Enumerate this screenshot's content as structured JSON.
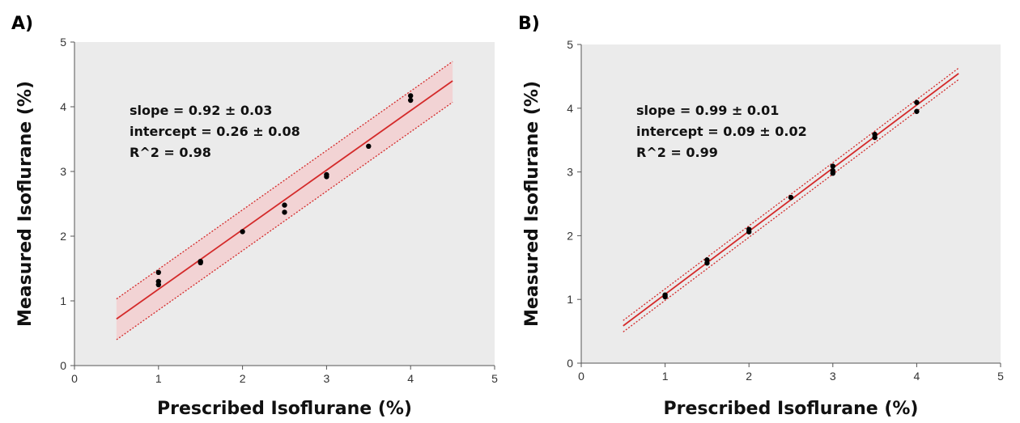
{
  "colors": {
    "plot_background": "#ebebeb",
    "fit_line": "#d42a2a",
    "confidence_band": "#f2d3d4",
    "points": "#000000"
  },
  "chart_data": [
    {
      "panel_label": "A)",
      "type": "scatter",
      "xlabel": "Prescribed Isoflurane (%)",
      "ylabel": "Measured Isoflurane (%)",
      "xlim": [
        0,
        5
      ],
      "ylim": [
        0,
        5
      ],
      "xticks": [
        "0",
        "1",
        "2",
        "3",
        "4",
        "5"
      ],
      "yticks": [
        "0",
        "1",
        "2",
        "3",
        "4",
        "5"
      ],
      "grid": false,
      "annotation": [
        "slope = 0.92 ± 0.03",
        "intercept = 0.26 ± 0.08",
        "R^2 = 0.98"
      ],
      "fit": {
        "slope": 0.92,
        "intercept": 0.26,
        "x_range": [
          0.5,
          4.5
        ]
      },
      "band": {
        "lower_at_start": 0.4,
        "upper_at_start": 1.03,
        "lower_at_end": 4.07,
        "upper_at_end": 4.7,
        "shaded": true
      },
      "points": [
        {
          "x": 1,
          "y": 1.44
        },
        {
          "x": 1,
          "y": 1.3
        },
        {
          "x": 1,
          "y": 1.25
        },
        {
          "x": 1.5,
          "y": 1.59
        },
        {
          "x": 1.5,
          "y": 1.61
        },
        {
          "x": 2,
          "y": 2.07
        },
        {
          "x": 2.5,
          "y": 2.48
        },
        {
          "x": 2.5,
          "y": 2.37
        },
        {
          "x": 3,
          "y": 2.92
        },
        {
          "x": 3,
          "y": 2.95
        },
        {
          "x": 3.5,
          "y": 3.39
        },
        {
          "x": 4,
          "y": 4.17
        },
        {
          "x": 4,
          "y": 4.1
        }
      ]
    },
    {
      "panel_label": "B)",
      "type": "scatter",
      "xlabel": "Prescribed Isoflurane (%)",
      "ylabel": "Measured Isoflurane (%)",
      "xlim": [
        0,
        5
      ],
      "ylim": [
        0,
        5
      ],
      "xticks": [
        "0",
        "1",
        "2",
        "3",
        "4",
        "5"
      ],
      "yticks": [
        "0",
        "1",
        "2",
        "3",
        "4",
        "5"
      ],
      "grid": false,
      "annotation": [
        "slope = 0.99 ± 0.01",
        "intercept = 0.09 ± 0.02",
        "R^2 = 0.99"
      ],
      "fit": {
        "slope": 0.99,
        "intercept": 0.09,
        "x_range": [
          0.5,
          4.5
        ]
      },
      "band": {
        "lower_at_start": 0.49,
        "upper_at_start": 0.67,
        "lower_at_end": 4.45,
        "upper_at_end": 4.63,
        "shaded": false
      },
      "points": [
        {
          "x": 1,
          "y": 1.07
        },
        {
          "x": 1,
          "y": 1.04
        },
        {
          "x": 1.5,
          "y": 1.62
        },
        {
          "x": 1.5,
          "y": 1.57
        },
        {
          "x": 2,
          "y": 2.1
        },
        {
          "x": 2,
          "y": 2.06
        },
        {
          "x": 2.5,
          "y": 2.6
        },
        {
          "x": 3,
          "y": 3.09
        },
        {
          "x": 3,
          "y": 3.02
        },
        {
          "x": 3,
          "y": 2.98
        },
        {
          "x": 3.5,
          "y": 3.59
        },
        {
          "x": 3.5,
          "y": 3.54
        },
        {
          "x": 4,
          "y": 4.09
        },
        {
          "x": 4,
          "y": 3.95
        }
      ]
    }
  ]
}
